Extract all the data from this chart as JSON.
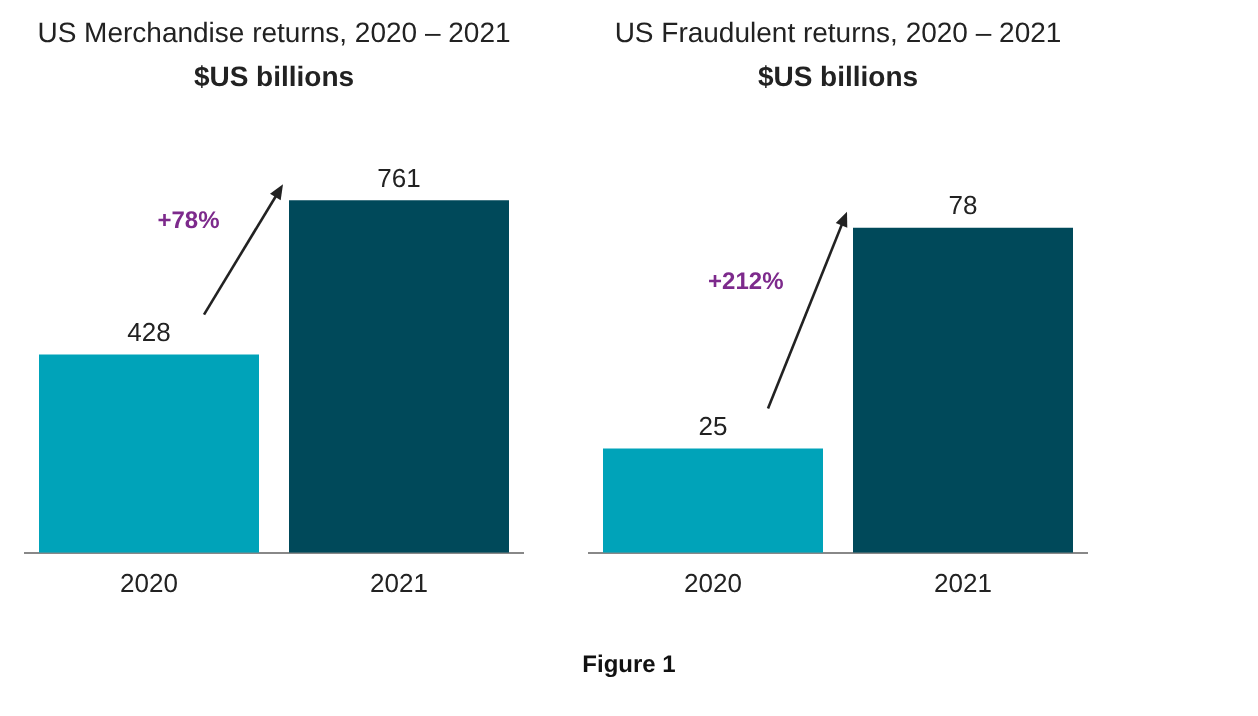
{
  "chart_data": [
    {
      "type": "bar",
      "title": "US Merchandise returns, 2020 – 2021",
      "subtitle": "$US billions",
      "categories": [
        "2020",
        "2021"
      ],
      "values": [
        428,
        761
      ],
      "colors": [
        "#00a3b9",
        "#00495a"
      ],
      "data_labels": true,
      "annotations": [
        "+78%"
      ],
      "tick_labels": "x",
      "grid": false,
      "legend": false
    },
    {
      "type": "bar",
      "title": "US Fraudulent returns, 2020 – 2021",
      "subtitle": "$US billions",
      "categories": [
        "2020",
        "2021"
      ],
      "values": [
        25,
        78
      ],
      "colors": [
        "#00a3b9",
        "#00495a"
      ],
      "data_labels": true,
      "annotations": [
        "+212%"
      ],
      "tick_labels": "x",
      "grid": false,
      "legend": false
    },
    {
      "type": "other",
      "title": "Figure 1"
    }
  ]
}
